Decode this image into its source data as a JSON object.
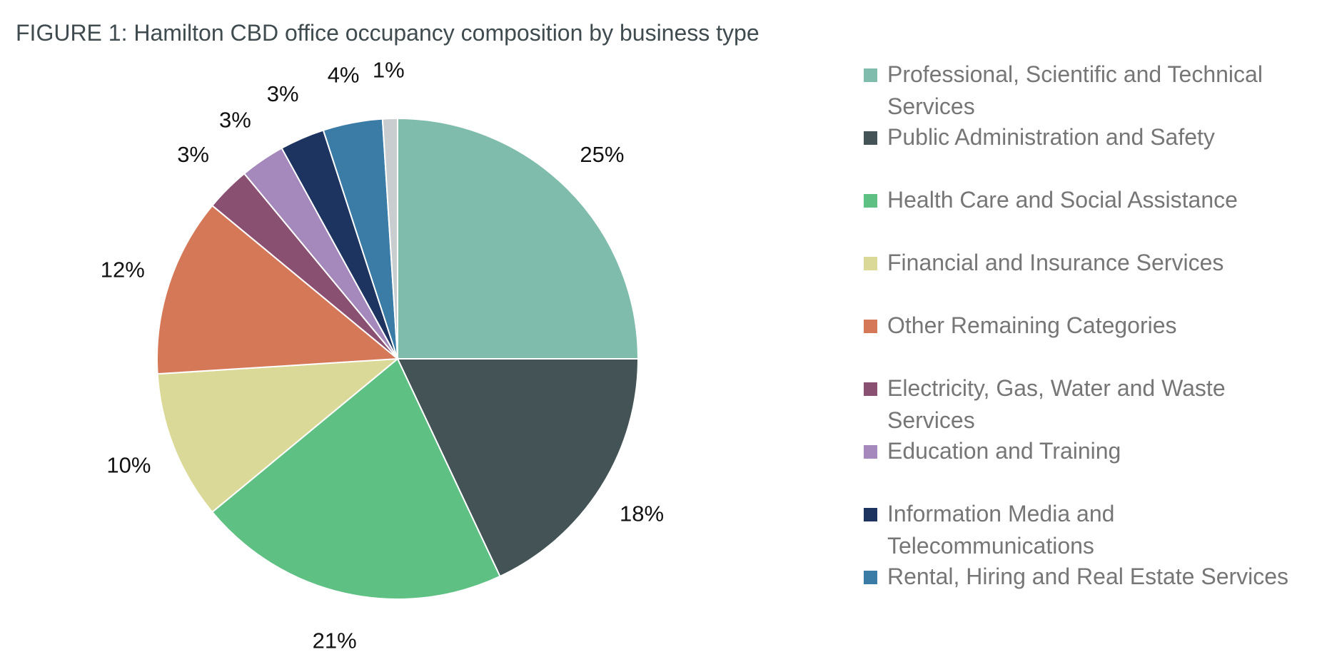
{
  "chart_data": {
    "type": "pie",
    "title": "FIGURE 1: Hamilton CBD office occupancy composition by business type",
    "start_angle": "12 o'clock",
    "direction": "clockwise",
    "legend_position": "right",
    "slices": [
      {
        "label": "Professional, Scientific and Technical Services",
        "value": 25,
        "value_label": "25%",
        "color": "#80bcab"
      },
      {
        "label": "Public Administration and Safety",
        "value": 18,
        "value_label": "18%",
        "color": "#445355"
      },
      {
        "label": "Health Care and Social Assistance",
        "value": 21,
        "value_label": "21%",
        "color": "#5ec083"
      },
      {
        "label": "Financial and Insurance Services",
        "value": 10,
        "value_label": "10%",
        "color": "#dbd998"
      },
      {
        "label": "Other Remaining Categories",
        "value": 12,
        "value_label": "12%",
        "color": "#d57858"
      },
      {
        "label": "Electricity, Gas, Water and Waste Services",
        "value": 3,
        "value_label": "3%",
        "color": "#8a5071"
      },
      {
        "label": "Education and Training",
        "value": 3,
        "value_label": "3%",
        "color": "#a589bd"
      },
      {
        "label": "Information Media and Telecommunications",
        "value": 3,
        "value_label": "3%",
        "color": "#1d3461"
      },
      {
        "label": "Rental, Hiring and Real Estate Services",
        "value": 4,
        "value_label": "4%",
        "color": "#3a7ca6"
      },
      {
        "label": "",
        "value": 1,
        "value_label": "1%",
        "color": "#c9cdd0"
      }
    ]
  }
}
